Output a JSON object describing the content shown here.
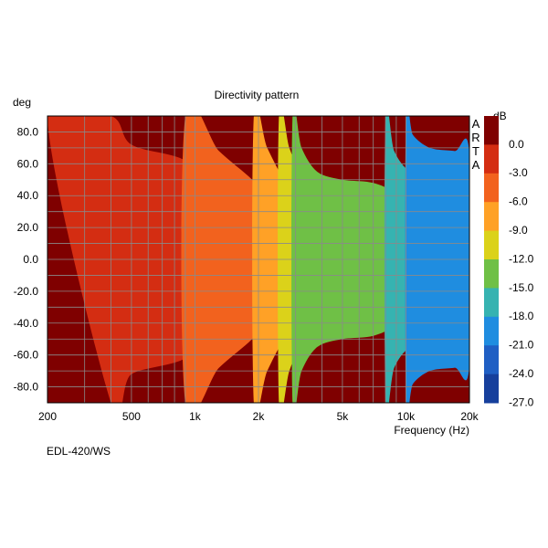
{
  "chart_data": {
    "type": "heatmap",
    "title": "Directivity pattern",
    "y_unit_label": "deg",
    "xlabel": "Frequency (Hz)",
    "x_scale": "log",
    "xlim": [
      200,
      20000
    ],
    "ylim": [
      -90,
      90
    ],
    "y_axis_inverted": true,
    "x_ticks": [
      {
        "value": 200,
        "label": "200"
      },
      {
        "value": 500,
        "label": "500"
      },
      {
        "value": 1000,
        "label": "1k"
      },
      {
        "value": 2000,
        "label": "2k"
      },
      {
        "value": 5000,
        "label": "5k"
      },
      {
        "value": 10000,
        "label": "10k"
      },
      {
        "value": 20000,
        "label": "20k"
      }
    ],
    "y_ticks": [
      {
        "value": -80,
        "label": "-80.0"
      },
      {
        "value": -60,
        "label": "-60.0"
      },
      {
        "value": -40,
        "label": "-40.0"
      },
      {
        "value": -20,
        "label": "-20.0"
      },
      {
        "value": 0,
        "label": "0.0"
      },
      {
        "value": 20,
        "label": "20.0"
      },
      {
        "value": 40,
        "label": "40.0"
      },
      {
        "value": 60,
        "label": "60.0"
      },
      {
        "value": 80,
        "label": "80.0"
      }
    ],
    "grid": true,
    "colorbar": {
      "unit_label": "dB",
      "levels": [
        {
          "label": "0.0",
          "value": 0,
          "color": "#7f0000"
        },
        {
          "label": "-3.0",
          "value": -3,
          "color": "#d42d12"
        },
        {
          "label": "-6.0",
          "value": -6,
          "color": "#f2621e"
        },
        {
          "label": "-9.0",
          "value": -9,
          "color": "#ffa126"
        },
        {
          "label": "-12.0",
          "value": -12,
          "color": "#dbd21a"
        },
        {
          "label": "-15.0",
          "value": -15,
          "color": "#6fc046"
        },
        {
          "label": "-18.0",
          "value": -18,
          "color": "#36b3b1"
        },
        {
          "label": "-21.0",
          "value": -21,
          "color": "#1f8de0"
        },
        {
          "label": "-24.0",
          "value": -24,
          "color": "#1f5fc4"
        },
        {
          "label": "-27.0",
          "value": -27,
          "color": "#163f9c"
        }
      ]
    },
    "contours": [
      {
        "level": -3,
        "color": "#d42d12",
        "boundary": [
          [
            200,
            90
          ],
          [
            400,
            90
          ],
          [
            500,
            72
          ],
          [
            900,
            62
          ],
          [
            1300,
            40
          ],
          [
            1800,
            28
          ],
          [
            2500,
            18
          ],
          [
            4000,
            12
          ],
          [
            8000,
            8
          ],
          [
            15000,
            5
          ],
          [
            20000,
            4
          ],
          [
            20000,
            -4
          ],
          [
            15000,
            -5
          ],
          [
            8000,
            -8
          ],
          [
            4000,
            -12
          ],
          [
            2500,
            -18
          ],
          [
            1800,
            -28
          ],
          [
            1300,
            -40
          ],
          [
            900,
            -62
          ],
          [
            500,
            -72
          ],
          [
            400,
            -90
          ]
        ]
      },
      {
        "level": -6,
        "color": "#f2621e",
        "boundary": [
          [
            900,
            90
          ],
          [
            1300,
            68
          ],
          [
            1800,
            52
          ],
          [
            2400,
            36
          ],
          [
            3200,
            27
          ],
          [
            4200,
            20
          ],
          [
            6000,
            15
          ],
          [
            9000,
            11
          ],
          [
            14000,
            8
          ],
          [
            20000,
            6
          ],
          [
            20000,
            -6
          ],
          [
            14000,
            -8
          ],
          [
            9000,
            -11
          ],
          [
            6000,
            -15
          ],
          [
            4200,
            -20
          ],
          [
            3200,
            -27
          ],
          [
            2400,
            -36
          ],
          [
            1800,
            -52
          ],
          [
            1300,
            -68
          ],
          [
            900,
            -90
          ]
        ]
      },
      {
        "level": -9,
        "color": "#ffa126",
        "boundary": [
          [
            1900,
            90
          ],
          [
            2200,
            70
          ],
          [
            2700,
            48
          ],
          [
            3400,
            33
          ],
          [
            4300,
            26
          ],
          [
            6000,
            20
          ],
          [
            9000,
            15
          ],
          [
            14000,
            11
          ],
          [
            20000,
            8
          ],
          [
            20000,
            -8
          ],
          [
            14000,
            -11
          ],
          [
            9000,
            -15
          ],
          [
            6000,
            -20
          ],
          [
            4300,
            -26
          ],
          [
            3400,
            -33
          ],
          [
            2700,
            -48
          ],
          [
            2200,
            -70
          ],
          [
            1900,
            -90
          ]
        ]
      },
      {
        "level": -12,
        "color": "#dbd21a",
        "boundary": [
          [
            2500,
            90
          ],
          [
            2800,
            70
          ],
          [
            3200,
            52
          ],
          [
            3800,
            40
          ],
          [
            5000,
            36
          ],
          [
            7000,
            33
          ],
          [
            10000,
            27
          ],
          [
            15000,
            20
          ],
          [
            20000,
            18
          ],
          [
            20000,
            -18
          ],
          [
            15000,
            -20
          ],
          [
            10000,
            -27
          ],
          [
            7000,
            -33
          ],
          [
            5000,
            -36
          ],
          [
            3800,
            -40
          ],
          [
            3200,
            -52
          ],
          [
            2800,
            -70
          ],
          [
            2500,
            -90
          ]
        ]
      },
      {
        "level": -15,
        "color": "#6fc046",
        "boundary": [
          [
            2900,
            90
          ],
          [
            3200,
            70
          ],
          [
            3800,
            55
          ],
          [
            5000,
            50
          ],
          [
            7000,
            48
          ],
          [
            10000,
            40
          ],
          [
            15000,
            34
          ],
          [
            20000,
            30
          ],
          [
            20000,
            -30
          ],
          [
            15000,
            -34
          ],
          [
            10000,
            -40
          ],
          [
            7000,
            -48
          ],
          [
            5000,
            -50
          ],
          [
            3800,
            -55
          ],
          [
            3200,
            -70
          ],
          [
            2900,
            -90
          ]
        ]
      },
      {
        "level": -18,
        "color": "#36b3b1",
        "boundary": [
          [
            8000,
            90
          ],
          [
            8800,
            68
          ],
          [
            10500,
            55
          ],
          [
            14000,
            52
          ],
          [
            20000,
            48
          ],
          [
            20000,
            -48
          ],
          [
            14000,
            -52
          ],
          [
            10500,
            -55
          ],
          [
            8800,
            -68
          ],
          [
            8000,
            -90
          ]
        ]
      },
      {
        "level": -21,
        "color": "#1f8de0",
        "boundary": [
          [
            10000,
            90
          ],
          [
            10800,
            78
          ],
          [
            13000,
            70
          ],
          [
            17000,
            68
          ],
          [
            20000,
            66
          ],
          [
            20000,
            -66
          ],
          [
            17000,
            -68
          ],
          [
            13000,
            -70
          ],
          [
            10800,
            -78
          ],
          [
            10000,
            -90
          ]
        ]
      }
    ],
    "side_label": [
      "A",
      "R",
      "T",
      "A"
    ],
    "footer_label": "EDL-420/WS"
  }
}
